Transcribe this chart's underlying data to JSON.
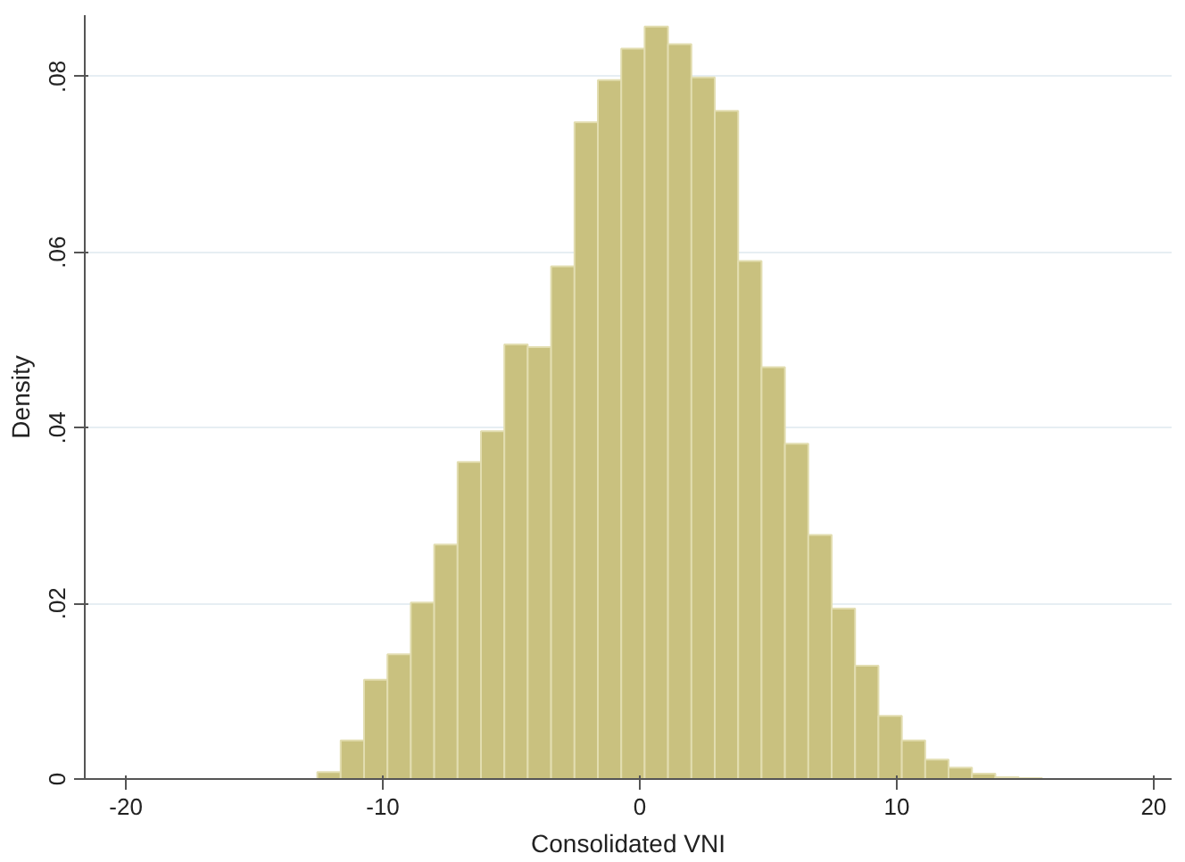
{
  "chart_data": {
    "type": "histogram",
    "xlabel": "Consolidated VNI",
    "ylabel": "Density",
    "bins": [
      -12.55,
      -11.64,
      -10.73,
      -9.82,
      -8.91,
      -8.0,
      -7.09,
      -6.18,
      -5.27,
      -4.36,
      -3.45,
      -2.54,
      -1.63,
      -0.72,
      0.19,
      1.1,
      2.01,
      2.92,
      3.83,
      4.74,
      5.65,
      6.56,
      7.47,
      8.38,
      9.29,
      10.2,
      11.11,
      12.02,
      12.93,
      13.84,
      14.75,
      15.66
    ],
    "values": [
      0.0008,
      0.0044,
      0.0113,
      0.0142,
      0.0201,
      0.0267,
      0.0361,
      0.0396,
      0.0495,
      0.0492,
      0.0584,
      0.0748,
      0.0796,
      0.0832,
      0.0857,
      0.0837,
      0.0799,
      0.0761,
      0.059,
      0.0469,
      0.0382,
      0.0278,
      0.0194,
      0.0129,
      0.0072,
      0.0044,
      0.0022,
      0.0013,
      0.0006,
      0.0002,
      0.0001
    ],
    "color": "#c9c17f",
    "xlim": [
      -21.6,
      20.7
    ],
    "ylim": [
      0,
      0.087
    ],
    "xticks": [
      -20,
      -10,
      0,
      10,
      20
    ],
    "yticks": [
      {
        "value": 0,
        "label": "0"
      },
      {
        "value": 0.02,
        "label": ".02"
      },
      {
        "value": 0.04,
        "label": ".04"
      },
      {
        "value": 0.06,
        "label": ".06"
      },
      {
        "value": 0.08,
        "label": ".08"
      }
    ],
    "grid": "y"
  }
}
